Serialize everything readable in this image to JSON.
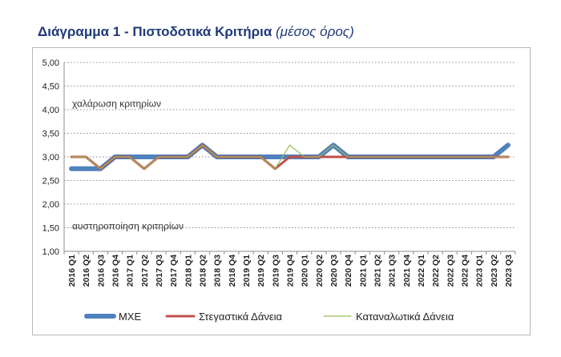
{
  "chart_data": {
    "type": "line",
    "title": "Διάγραμμα 1 - Πιστοδοτικά Κριτήρια",
    "subtitle": "(μέσος όρος)",
    "xlabel": "",
    "ylabel": "",
    "ylim": [
      1.0,
      5.0
    ],
    "yticks": [
      "1,00",
      "1,50",
      "2,00",
      "2,50",
      "3,00",
      "3,50",
      "4,00",
      "4,50",
      "5,00"
    ],
    "grid": true,
    "legend_position": "bottom",
    "categories": [
      "2016 Q1",
      "2016 Q2",
      "2016 Q3",
      "2016 Q4",
      "2017 Q1",
      "2017 Q2",
      "2017 Q3",
      "2017 Q4",
      "2018 Q1",
      "2018 Q2",
      "2018 Q3",
      "2018 Q4",
      "2019 Q1",
      "2019 Q2",
      "2019 Q3",
      "2019 Q4",
      "2020 Q1",
      "2020 Q2",
      "2020 Q3",
      "2020 Q4",
      "2021 Q1",
      "2021 Q2",
      "2021 Q3",
      "2021 Q4",
      "2022 Q1",
      "2022 Q2",
      "2022 Q3",
      "2022 Q4",
      "2023 Q1",
      "2023 Q2",
      "2023 Q3"
    ],
    "annotations": [
      {
        "text": "χαλάρωση κριτηρίων",
        "y": 4.13
      },
      {
        "text": "αυστηροποίηση κριτηρίων",
        "y": 1.53
      }
    ],
    "series": [
      {
        "name": "ΜΧΕ",
        "color": "#4f81bd",
        "width": 6,
        "values": [
          2.75,
          2.75,
          2.75,
          3.0,
          3.0,
          3.0,
          3.0,
          3.0,
          3.0,
          3.25,
          3.0,
          3.0,
          3.0,
          3.0,
          3.0,
          3.0,
          3.0,
          3.0,
          3.25,
          3.0,
          3.0,
          3.0,
          3.0,
          3.0,
          3.0,
          3.0,
          3.0,
          3.0,
          3.0,
          3.0,
          3.25
        ]
      },
      {
        "name": "Στεγαστικά Δάνεια",
        "color": "#c0504d",
        "width": 3,
        "values": [
          3.0,
          3.0,
          2.75,
          3.0,
          3.0,
          2.75,
          3.0,
          3.0,
          3.0,
          3.25,
          3.0,
          3.0,
          3.0,
          3.0,
          2.75,
          3.0,
          3.0,
          3.0,
          3.0,
          3.0,
          3.0,
          3.0,
          3.0,
          3.0,
          3.0,
          3.0,
          3.0,
          3.0,
          3.0,
          3.0,
          3.0
        ]
      },
      {
        "name": "Καταναλωτικά Δάνεια",
        "color": "#9bbb59",
        "width": 1.2,
        "values": [
          3.0,
          3.0,
          2.75,
          3.0,
          3.0,
          2.75,
          3.0,
          3.0,
          3.0,
          3.25,
          3.0,
          3.0,
          3.0,
          3.0,
          2.75,
          3.25,
          3.0,
          3.0,
          3.25,
          3.0,
          3.0,
          3.0,
          3.0,
          3.0,
          3.0,
          3.0,
          3.0,
          3.0,
          3.0,
          3.0,
          3.0
        ]
      }
    ]
  }
}
